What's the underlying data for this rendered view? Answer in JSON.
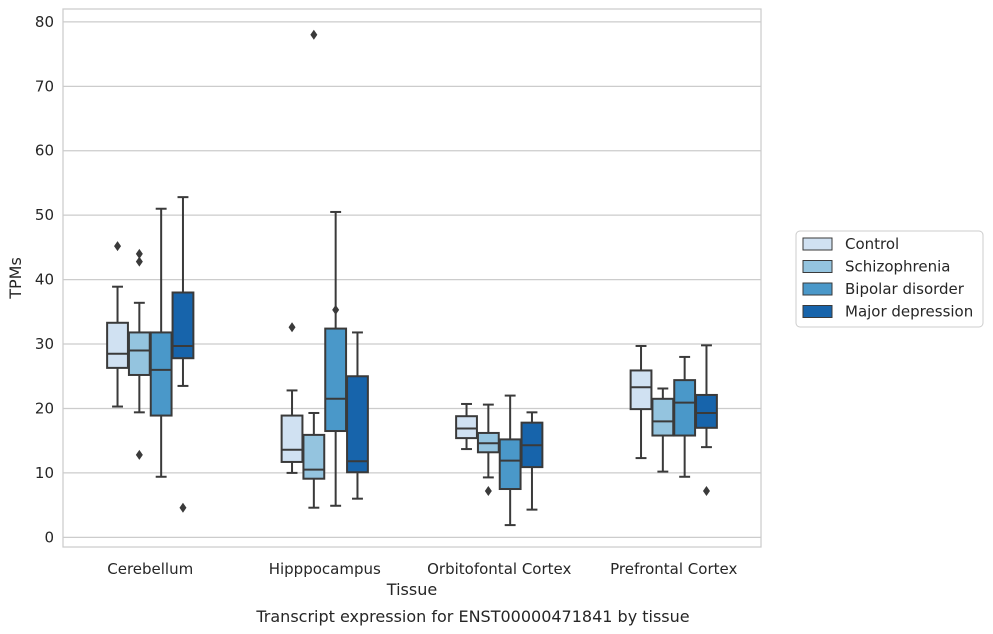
{
  "caption": "Transcript expression for ENST00000471841 by tissue",
  "chart_data": {
    "type": "box",
    "xlabel": "Tissue",
    "ylabel": "TPMs",
    "categories": [
      "Cerebellum",
      "Hipppocampus",
      "Orbitofontal Cortex",
      "Prefrontal Cortex"
    ],
    "ylim": [
      -1.5,
      82
    ],
    "yticks": [
      0,
      10,
      20,
      30,
      40,
      50,
      60,
      70,
      80
    ],
    "grid": "horizontal",
    "legend_position": "right",
    "series": [
      {
        "name": "Control",
        "color": "#d0e1f2",
        "boxes": [
          {
            "whislo": 20.3,
            "q1": 26.3,
            "med": 28.5,
            "q3": 33.3,
            "whishi": 38.9,
            "fliers": [
              45.2
            ]
          },
          {
            "whislo": 10.0,
            "q1": 11.7,
            "med": 13.6,
            "q3": 18.9,
            "whishi": 22.8,
            "fliers": [
              32.6
            ]
          },
          {
            "whislo": 13.7,
            "q1": 15.4,
            "med": 16.9,
            "q3": 18.8,
            "whishi": 20.7,
            "fliers": []
          },
          {
            "whislo": 12.3,
            "q1": 19.9,
            "med": 23.3,
            "q3": 25.9,
            "whishi": 29.7,
            "fliers": []
          }
        ]
      },
      {
        "name": "Schizophrenia",
        "color": "#94c4df",
        "boxes": [
          {
            "whislo": 19.4,
            "q1": 25.2,
            "med": 29.0,
            "q3": 31.8,
            "whishi": 36.4,
            "fliers": [
              44.0,
              42.8,
              12.8
            ]
          },
          {
            "whislo": 4.6,
            "q1": 9.1,
            "med": 10.5,
            "q3": 15.9,
            "whishi": 19.3,
            "fliers": [
              78.0
            ]
          },
          {
            "whislo": 9.3,
            "q1": 13.2,
            "med": 14.6,
            "q3": 16.2,
            "whishi": 20.6,
            "fliers": [
              7.2
            ]
          },
          {
            "whislo": 10.2,
            "q1": 15.8,
            "med": 18.0,
            "q3": 21.5,
            "whishi": 23.1,
            "fliers": []
          }
        ]
      },
      {
        "name": "Bipolar disorder",
        "color": "#4a98c9",
        "boxes": [
          {
            "whislo": 9.4,
            "q1": 18.9,
            "med": 26.0,
            "q3": 31.8,
            "whishi": 51.0,
            "fliers": []
          },
          {
            "whislo": 4.9,
            "q1": 16.5,
            "med": 21.5,
            "q3": 32.4,
            "whishi": 50.5,
            "fliers": [
              35.3
            ]
          },
          {
            "whislo": 1.9,
            "q1": 7.5,
            "med": 11.9,
            "q3": 15.2,
            "whishi": 22.0,
            "fliers": []
          },
          {
            "whislo": 9.4,
            "q1": 15.8,
            "med": 20.9,
            "q3": 24.4,
            "whishi": 28.0,
            "fliers": []
          }
        ]
      },
      {
        "name": "Major depression",
        "color": "#1764ab",
        "boxes": [
          {
            "whislo": 23.5,
            "q1": 27.8,
            "med": 29.7,
            "q3": 38.0,
            "whishi": 52.8,
            "fliers": [
              4.6
            ]
          },
          {
            "whislo": 6.0,
            "q1": 10.1,
            "med": 11.8,
            "q3": 25.0,
            "whishi": 31.8,
            "fliers": []
          },
          {
            "whislo": 4.3,
            "q1": 10.9,
            "med": 14.3,
            "q3": 17.8,
            "whishi": 19.4,
            "fliers": []
          },
          {
            "whislo": 14.0,
            "q1": 17.0,
            "med": 19.3,
            "q3": 22.1,
            "whishi": 29.8,
            "fliers": [
              7.2
            ]
          }
        ]
      }
    ]
  }
}
